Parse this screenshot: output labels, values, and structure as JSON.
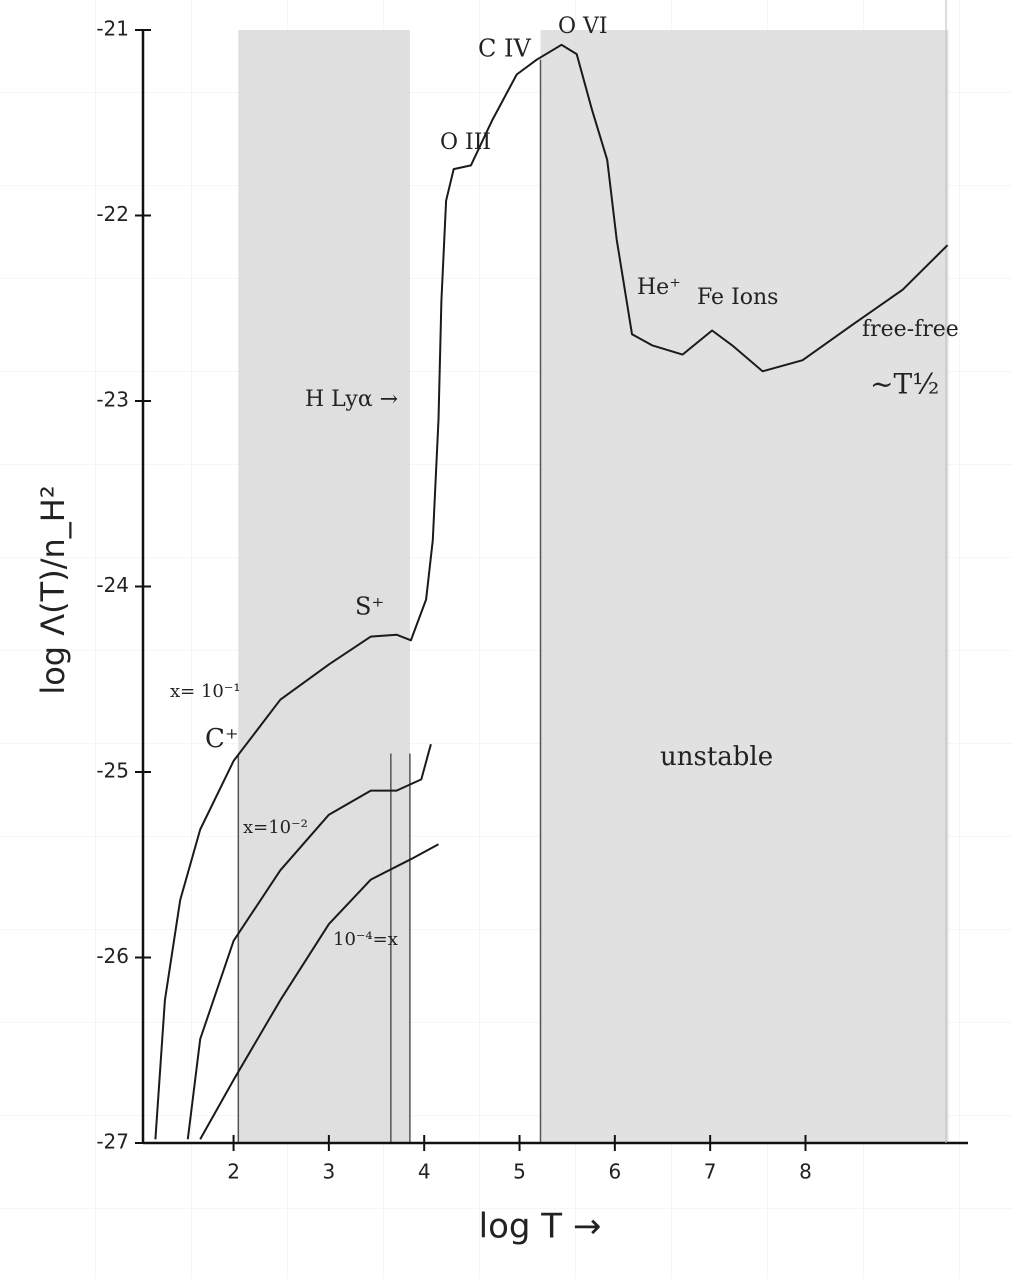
{
  "chart_data": {
    "type": "line",
    "xlabel": "log T →",
    "ylabel": "log Λ(T)/n_H²",
    "xlim": [
      1.05,
      9.6
    ],
    "ylim": [
      -27,
      -21
    ],
    "xticks": [
      2,
      3,
      4,
      5,
      6,
      7,
      8
    ],
    "yticks": [
      -21,
      -22,
      -23,
      -24,
      -25,
      -26,
      -27
    ],
    "color": "#1a1a1a",
    "vlines": [
      2.05,
      3.65,
      3.85,
      5.22
    ],
    "shaded": [
      [
        2.05,
        3.85
      ],
      [
        5.22,
        9.5
      ]
    ],
    "series": [
      {
        "name": "x= 10⁻¹",
        "x": [
          1.18,
          1.28,
          1.44,
          1.65,
          2.0,
          2.49,
          3.0,
          3.44,
          3.71,
          3.86,
          4.02,
          4.09,
          4.15,
          4.18,
          4.23,
          4.31,
          4.49,
          4.71,
          4.97,
          5.18,
          5.44,
          5.6,
          5.76,
          5.92,
          6.02,
          6.18,
          6.39,
          6.71,
          7.02,
          7.23,
          7.55,
          7.97,
          8.49,
          9.02,
          9.49
        ],
        "values": [
          -26.98,
          -26.23,
          -25.69,
          -25.31,
          -24.94,
          -24.61,
          -24.42,
          -24.27,
          -24.26,
          -24.29,
          -24.07,
          -23.75,
          -23.1,
          -22.46,
          -21.92,
          -21.75,
          -21.73,
          -21.49,
          -21.24,
          -21.16,
          -21.08,
          -21.13,
          -21.43,
          -21.7,
          -22.13,
          -22.64,
          -22.7,
          -22.75,
          -22.62,
          -22.7,
          -22.84,
          -22.78,
          -22.59,
          -22.4,
          -22.16
        ]
      },
      {
        "name": "x=10⁻²",
        "x": [
          1.52,
          1.65,
          2.0,
          2.49,
          3.0,
          3.44,
          3.71,
          3.97,
          4.07
        ],
        "values": [
          -26.98,
          -26.44,
          -25.91,
          -25.53,
          -25.23,
          -25.1,
          -25.1,
          -25.04,
          -24.85
        ]
      },
      {
        "name": "10⁻⁴=x",
        "x": [
          1.65,
          2.0,
          2.49,
          3.0,
          3.44,
          3.86,
          4.15
        ],
        "values": [
          -26.98,
          -26.66,
          -26.23,
          -25.82,
          -25.58,
          -25.47,
          -25.39
        ]
      }
    ],
    "annotations": [
      "C⁺",
      "S⁺",
      "H Lyα →",
      "O III",
      "C IV",
      "O VI",
      "He⁺",
      "Fe Ions",
      "free-free",
      "~T½",
      "unstable"
    ]
  }
}
